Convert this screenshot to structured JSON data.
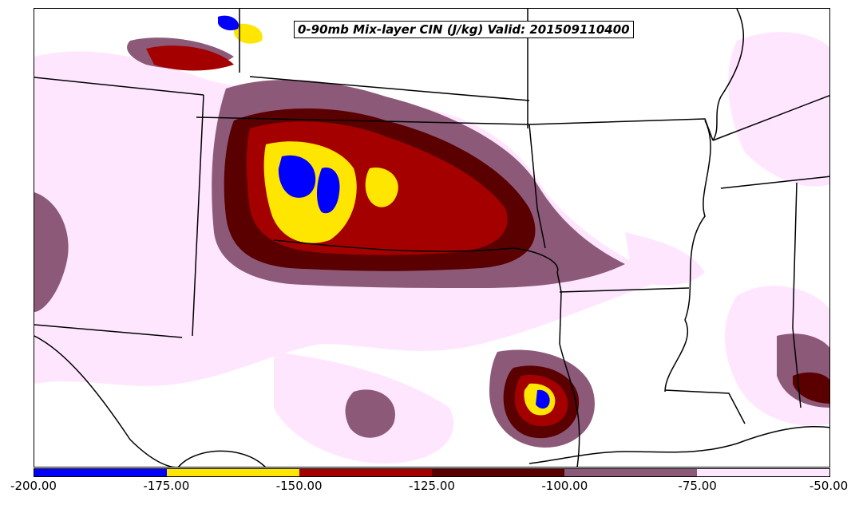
{
  "title": "0-90mb Mix-layer CIN (J/kg) Valid: 201509110400",
  "colorbar": {
    "colors": [
      "#0000ff",
      "#ffe600",
      "#a50000",
      "#5a0000",
      "#8c5a78",
      "#ffe6ff"
    ],
    "tick_labels": [
      "-200.00",
      "-175.00",
      "-150.00",
      "-125.00",
      "-100.00",
      "-75.00",
      "-50.00"
    ]
  }
}
